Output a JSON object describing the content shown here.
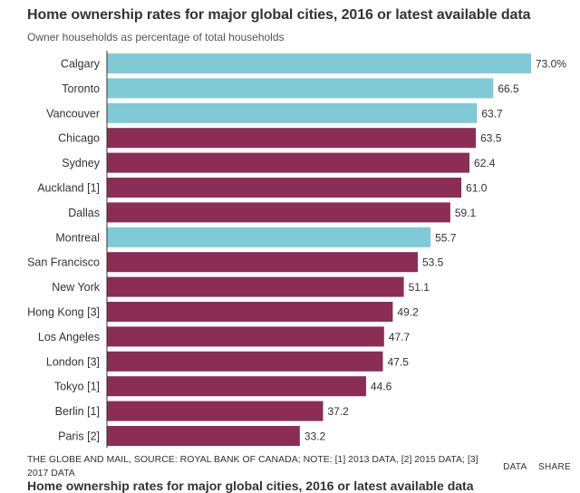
{
  "header": {
    "title": "Home ownership rates for major global cities, 2016 or latest available data",
    "subtitle": "Owner households as percentage of total households"
  },
  "chart_data": {
    "type": "bar",
    "orientation": "horizontal",
    "title": "Home ownership rates for major global cities, 2016 or latest available data",
    "subtitle": "Owner households as percentage of total households",
    "categories": [
      "Calgary",
      "Toronto",
      "Vancouver",
      "Chicago",
      "Sydney",
      "Auckland [1]",
      "Dallas",
      "Montreal",
      "San Francisco",
      "New York",
      "Hong Kong [3]",
      "Los Angeles",
      "London [3]",
      "Tokyo [1]",
      "Berlin [1]",
      "Paris [2]"
    ],
    "values": [
      73.0,
      66.5,
      63.7,
      63.5,
      62.4,
      61.0,
      59.1,
      55.7,
      53.5,
      51.1,
      49.2,
      47.7,
      47.5,
      44.6,
      37.2,
      33.2
    ],
    "value_labels": [
      "73.0%",
      "66.5",
      "63.7",
      "63.5",
      "62.4",
      "61.0",
      "59.1",
      "55.7",
      "53.5",
      "51.1",
      "49.2",
      "47.7",
      "47.5",
      "44.6",
      "37.2",
      "33.2"
    ],
    "highlight": [
      true,
      true,
      true,
      false,
      false,
      false,
      false,
      true,
      false,
      false,
      false,
      false,
      false,
      false,
      false,
      false
    ],
    "colors": {
      "canadian": "#7fcad6",
      "other": "#8b2d55",
      "axis": "#333333"
    },
    "xlim": [
      0,
      73
    ],
    "xlabel": "",
    "ylabel": ""
  },
  "footer": {
    "note": "THE GLOBE AND MAIL, SOURCE: ROYAL BANK OF CANADA; NOTE: [1] 2013 DATA, [2] 2015 DATA; [3] 2017 DATA",
    "data_link": "DATA",
    "share_link": "SHARE",
    "next_title": "Home ownership rates for major global cities, 2016 or latest available data"
  }
}
